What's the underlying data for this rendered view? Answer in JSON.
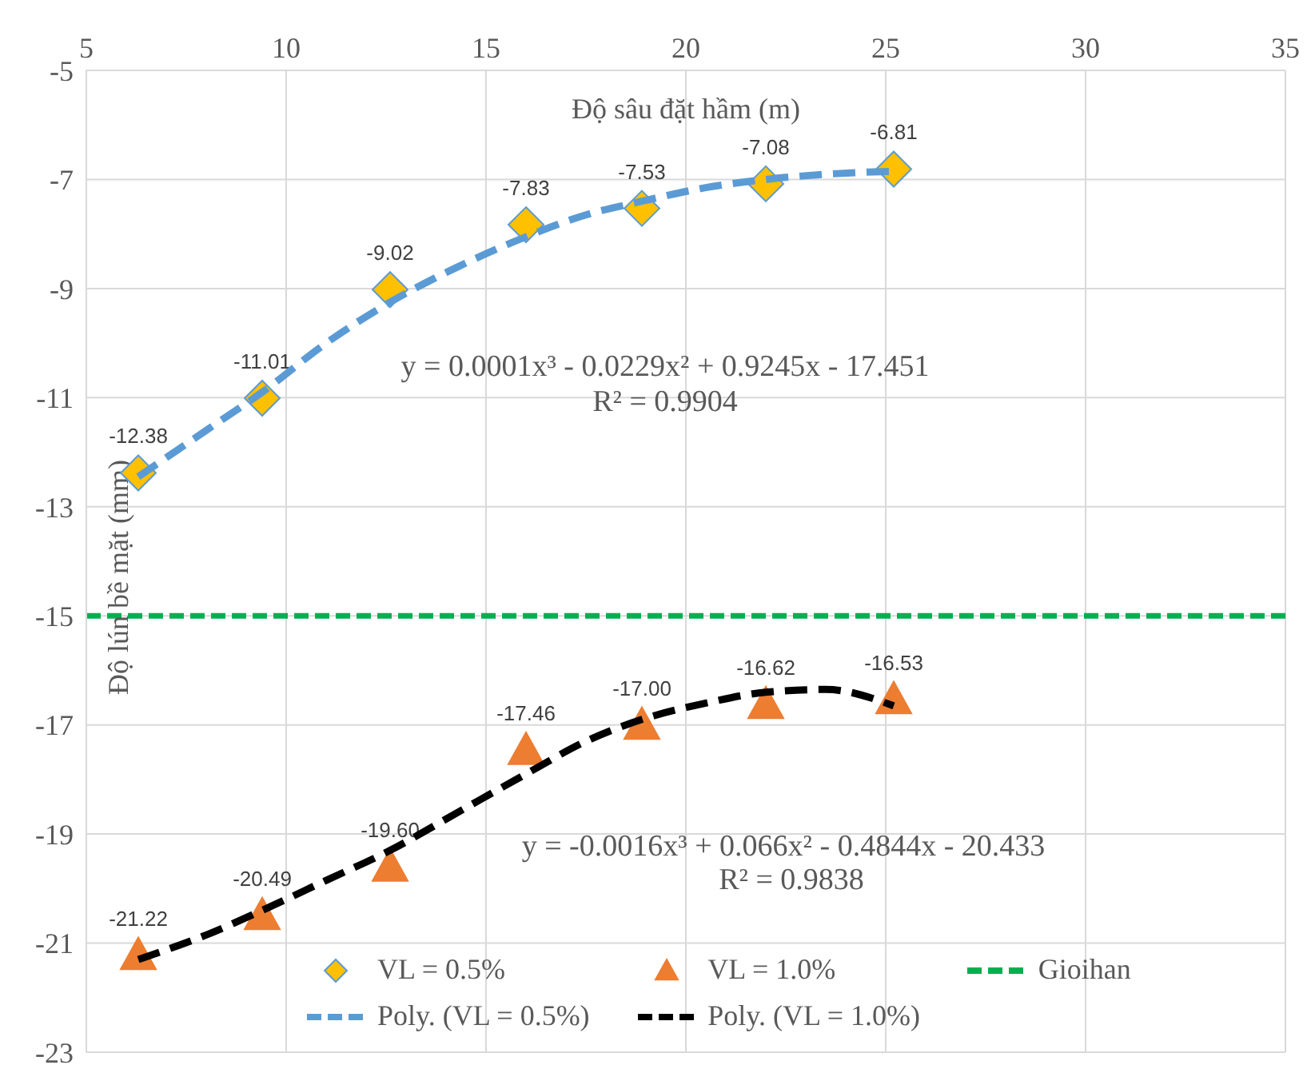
{
  "chart_data": {
    "type": "scatter",
    "xlabel": "Độ sâu đặt hầm (m)",
    "ylabel": "Độ lún bề mặt (mm)",
    "xlim": [
      5,
      35
    ],
    "xticks": [
      5,
      10,
      15,
      20,
      25,
      30,
      35
    ],
    "ylim": [
      -23,
      -5
    ],
    "yticks": [
      -23,
      -21,
      -19,
      -17,
      -15,
      -13,
      -11,
      -9,
      -7,
      -5
    ],
    "grid": true,
    "legend": "bottom",
    "series": [
      {
        "name": "VL = 0.5%",
        "marker": "diamond",
        "color": "#ffc000",
        "x": [
          6.3,
          9.4,
          12.6,
          16.0,
          18.9,
          22.0,
          25.2
        ],
        "values": [
          -12.38,
          -11.01,
          -9.02,
          -7.83,
          -7.53,
          -7.08,
          -6.81
        ],
        "value_labels": [
          "-12.38",
          "-11.01",
          "-9.02",
          "-7.83",
          "-7.53",
          "-7.08",
          "-6.81"
        ]
      },
      {
        "name": "VL = 1.0%",
        "marker": "triangle",
        "color": "#ed7d31",
        "x": [
          6.3,
          9.4,
          12.6,
          16.0,
          18.9,
          22.0,
          25.2
        ],
        "values": [
          -21.22,
          -20.49,
          -19.6,
          -17.46,
          -17.0,
          -16.62,
          -16.53
        ],
        "value_labels": [
          "-21.22",
          "-20.49",
          "-19.60",
          "-17.46",
          "-17.00",
          "-16.62",
          "-16.53"
        ]
      },
      {
        "name": "Poly. (VL = 0.5%)",
        "type": "line",
        "line_style": "dashed",
        "color": "#5b9bd5",
        "x": [
          6.3,
          8,
          9.4,
          11,
          12.6,
          14.3,
          16.0,
          17.5,
          18.9,
          20.5,
          22.0,
          23.6,
          25.2
        ],
        "values": [
          -12.45,
          -11.6,
          -10.9,
          -10.0,
          -9.25,
          -8.6,
          -8.05,
          -7.65,
          -7.4,
          -7.15,
          -7.0,
          -6.9,
          -6.85
        ]
      },
      {
        "name": "Poly. (VL = 1.0%)",
        "type": "line",
        "line_style": "dashed",
        "color": "#000000",
        "x": [
          6.3,
          8,
          9.4,
          11,
          12.6,
          14.3,
          16.0,
          17.5,
          18.9,
          20.5,
          22.0,
          23.5,
          25.2
        ],
        "values": [
          -21.3,
          -20.85,
          -20.4,
          -19.85,
          -19.3,
          -18.6,
          -17.9,
          -17.3,
          -16.9,
          -16.6,
          -16.4,
          -16.35,
          -16.65
        ]
      }
    ],
    "ref_lines": [
      {
        "axis": "y",
        "value": -15,
        "label": "Gioihan",
        "color": "#00b050",
        "line_style": "dashed"
      }
    ],
    "annotations": [
      "y = 0.0001x³ - 0.0229x² + 0.9245x - 17.451",
      "R² = 0.9904",
      "y = -0.0016x³ + 0.066x² - 0.4844x - 20.433",
      "R² = 0.9838"
    ]
  }
}
